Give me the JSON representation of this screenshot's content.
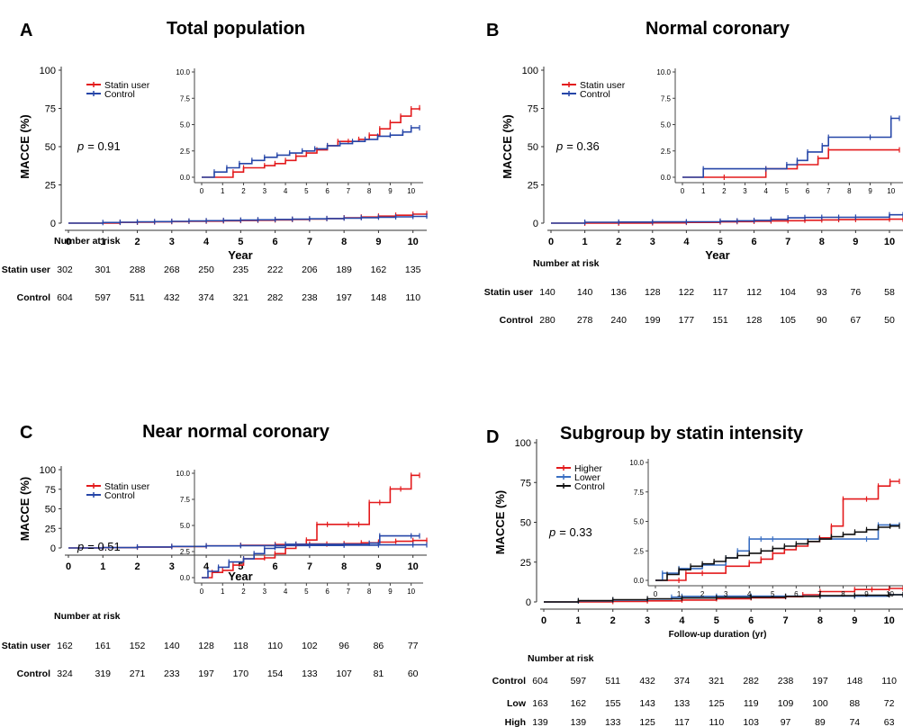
{
  "chart_data": [
    {
      "type": "line",
      "panel_letter": "A",
      "title": "Total population",
      "xlabel": "Year",
      "ylabel": "MACCE (%)",
      "xlim": [
        0,
        10.4
      ],
      "ylim": [
        0,
        100
      ],
      "x_ticks": [
        0,
        1,
        2,
        3,
        4,
        5,
        6,
        7,
        8,
        9,
        10
      ],
      "y_ticks": [
        0,
        25,
        50,
        75,
        100
      ],
      "p_label": "p",
      "p_value": "= 0.91",
      "legend_position": "top-left",
      "series": [
        {
          "name": "Statin user",
          "color": "#e31a1c",
          "x": [
            0,
            1.5,
            2.0,
            2.5,
            3.0,
            3.5,
            4.0,
            4.5,
            5.0,
            5.5,
            6.0,
            6.5,
            7.0,
            7.5,
            8.0,
            8.5,
            9.0,
            9.5,
            10.0,
            10.4
          ],
          "y": [
            0,
            0.5,
            0.6,
            0.8,
            1.0,
            1.2,
            1.3,
            1.5,
            1.7,
            1.9,
            2.1,
            2.4,
            2.7,
            3.0,
            3.5,
            4.0,
            4.6,
            5.2,
            5.9,
            6.3
          ]
        },
        {
          "name": "Control",
          "color": "#2646a8",
          "x": [
            0,
            1.0,
            1.5,
            2.0,
            2.5,
            3.0,
            3.5,
            4.0,
            4.5,
            5.0,
            5.5,
            6.0,
            6.5,
            7.0,
            7.5,
            8.0,
            8.5,
            9.0,
            9.5,
            10.0,
            10.4
          ],
          "y": [
            0,
            0.4,
            0.6,
            0.8,
            1.0,
            1.2,
            1.4,
            1.6,
            1.8,
            2.0,
            2.2,
            2.4,
            2.6,
            2.8,
            3.0,
            3.3,
            3.6,
            3.9,
            4.1,
            4.4,
            4.6
          ]
        }
      ],
      "inset": {
        "ylim": [
          0,
          10
        ],
        "y_ticks": [
          "0.0",
          "2.5",
          "5.0",
          "7.5",
          "10.0"
        ],
        "x_ticks": [
          0,
          1,
          2,
          3,
          4,
          5,
          6,
          7,
          8,
          9,
          10
        ],
        "series": [
          {
            "name": "Statin user",
            "x": [
              0,
              1.5,
              2.0,
              3.0,
              3.5,
              4.0,
              4.5,
              5.0,
              5.5,
              6.0,
              6.5,
              7.0,
              7.5,
              8.0,
              8.5,
              9.0,
              9.5,
              10.0,
              10.4
            ],
            "y": [
              0,
              0.5,
              0.9,
              1.1,
              1.3,
              1.6,
              2.0,
              2.3,
              2.6,
              3.0,
              3.4,
              3.4,
              3.6,
              4.0,
              4.6,
              5.2,
              5.8,
              6.5,
              6.6
            ]
          },
          {
            "name": "Control",
            "x": [
              0,
              0.6,
              1.2,
              1.8,
              2.4,
              3.0,
              3.6,
              4.2,
              4.8,
              5.4,
              6.0,
              6.6,
              7.2,
              7.8,
              8.4,
              9.0,
              9.6,
              10.0,
              10.4
            ],
            "y": [
              0,
              0.5,
              0.9,
              1.3,
              1.6,
              1.9,
              2.1,
              2.3,
              2.5,
              2.7,
              3.0,
              3.2,
              3.4,
              3.6,
              3.9,
              4.0,
              4.3,
              4.7,
              4.7
            ]
          }
        ]
      },
      "risk_table": {
        "header": "Number at risk",
        "rows": [
          {
            "label": "Statin user",
            "values": [
              302,
              301,
              288,
              268,
              250,
              235,
              222,
              206,
              189,
              162,
              135
            ]
          },
          {
            "label": "Control",
            "values": [
              604,
              597,
              511,
              432,
              374,
              321,
              282,
              238,
              197,
              148,
              110
            ]
          }
        ]
      }
    },
    {
      "type": "line",
      "panel_letter": "B",
      "title": "Normal coronary",
      "xlabel": "Year",
      "ylabel": "MACCE (%)",
      "xlim": [
        0,
        10.4
      ],
      "ylim": [
        0,
        100
      ],
      "x_ticks": [
        0,
        1,
        2,
        3,
        4,
        5,
        6,
        7,
        8,
        9,
        10
      ],
      "y_ticks": [
        0,
        25,
        50,
        75,
        100
      ],
      "p_label": "p",
      "p_value": "= 0.36",
      "legend_position": "top-left",
      "series": [
        {
          "name": "Statin user",
          "color": "#e31a1c",
          "x": [
            0,
            1.0,
            2.0,
            3.0,
            4.0,
            5.0,
            5.5,
            6.0,
            6.5,
            7.0,
            7.5,
            8.0,
            8.5,
            9.0,
            10.0,
            10.4
          ],
          "y": [
            0,
            0,
            0,
            0.2,
            0.5,
            0.8,
            1.0,
            1.2,
            1.4,
            1.6,
            1.9,
            2.1,
            2.3,
            2.4,
            2.6,
            2.6
          ]
        },
        {
          "name": "Control",
          "color": "#2646a8",
          "x": [
            0,
            1.0,
            2.0,
            3.0,
            4.0,
            5.0,
            5.5,
            6.0,
            6.5,
            7.0,
            7.5,
            8.0,
            8.5,
            9.0,
            10.0,
            10.4
          ],
          "y": [
            0,
            0.6,
            0.7,
            0.8,
            0.9,
            1.3,
            1.5,
            1.8,
            2.5,
            3.5,
            3.7,
            3.8,
            3.8,
            3.9,
            5.5,
            5.5
          ]
        }
      ],
      "inset": {
        "ylim": [
          0,
          10
        ],
        "y_ticks": [
          "0.0",
          "2.5",
          "5.0",
          "7.5",
          "10.0"
        ],
        "x_ticks": [
          0,
          1,
          2,
          3,
          4,
          5,
          6,
          7,
          8,
          9,
          10
        ],
        "series": [
          {
            "name": "Statin user",
            "x": [
              0,
              2.0,
              4.0,
              5.5,
              6.5,
              7.0,
              10.4
            ],
            "y": [
              0,
              0,
              0.8,
              1.2,
              1.8,
              2.6,
              2.6
            ]
          },
          {
            "name": "Control",
            "x": [
              0,
              1.0,
              4.0,
              5.0,
              5.5,
              6.0,
              6.7,
              7.0,
              9.0,
              10.0,
              10.4
            ],
            "y": [
              0,
              0.8,
              0.8,
              1.2,
              1.6,
              2.4,
              3.0,
              3.8,
              3.8,
              5.6,
              5.6
            ]
          }
        ]
      },
      "risk_table": {
        "header": "Number at risk",
        "rows": [
          {
            "label": "Statin user",
            "values": [
              140,
              140,
              136,
              128,
              122,
              117,
              112,
              104,
              93,
              76,
              58
            ]
          },
          {
            "label": "Control",
            "values": [
              280,
              278,
              240,
              199,
              177,
              151,
              128,
              105,
              90,
              67,
              50
            ]
          }
        ]
      }
    },
    {
      "type": "line",
      "panel_letter": "C",
      "title": "Near normal coronary",
      "xlabel": "Year",
      "ylabel": "MACCE (%)",
      "xlim": [
        0,
        10.4
      ],
      "ylim": [
        0,
        100
      ],
      "x_ticks": [
        0,
        1,
        2,
        3,
        4,
        5,
        6,
        7,
        8,
        9,
        10
      ],
      "y_ticks": [
        0,
        25,
        50,
        75,
        100
      ],
      "p_label": "p",
      "p_value": "= 0.51",
      "legend_position": "top-left",
      "series": [
        {
          "name": "Statin user",
          "color": "#e31a1c",
          "x": [
            0,
            1.0,
            2.0,
            3.0,
            4.0,
            5.0,
            6.0,
            7.0,
            7.5,
            8.0,
            8.5,
            9.0,
            9.5,
            10.0,
            10.4
          ],
          "y": [
            0,
            0.4,
            1.0,
            1.8,
            2.6,
            3.4,
            4.4,
            5.0,
            5.0,
            5.5,
            6.5,
            7.5,
            8.5,
            9.5,
            9.7
          ]
        },
        {
          "name": "Control",
          "color": "#2646a8",
          "x": [
            0,
            1.0,
            2.0,
            3.0,
            4.0,
            5.0,
            6.0,
            7.0,
            8.0,
            9.0,
            10.0,
            10.4
          ],
          "y": [
            0,
            0.5,
            1.3,
            2.0,
            2.7,
            3.0,
            3.1,
            3.2,
            3.6,
            3.9,
            4.0,
            4.0
          ]
        }
      ],
      "inset": {
        "ylim": [
          0,
          10
        ],
        "y_ticks": [
          "0.0",
          "2.5",
          "5.0",
          "7.5",
          "10.0"
        ],
        "x_ticks": [
          0,
          1,
          2,
          3,
          4,
          5,
          6,
          7,
          8,
          9,
          10
        ],
        "series": [
          {
            "name": "Statin user",
            "x": [
              0,
              0.5,
              1.0,
              1.5,
              2.0,
              3.0,
              3.5,
              4.0,
              4.5,
              5.0,
              5.5,
              6.0,
              7.0,
              7.5,
              8.0,
              8.5,
              9.0,
              9.5,
              10.0,
              10.4
            ],
            "y": [
              0,
              0.5,
              0.7,
              1.2,
              1.8,
              1.9,
              2.3,
              2.8,
              3.2,
              3.6,
              5.1,
              5.1,
              5.1,
              5.1,
              7.2,
              7.2,
              8.5,
              8.5,
              9.8,
              9.8
            ]
          },
          {
            "name": "Control",
            "x": [
              0,
              0.3,
              0.8,
              1.3,
              2.0,
              2.5,
              3.0,
              3.5,
              4.0,
              4.5,
              8.0,
              8.5,
              10.0,
              10.4
            ],
            "y": [
              0,
              0.6,
              1.0,
              1.5,
              1.8,
              2.3,
              2.8,
              2.9,
              3.2,
              3.2,
              3.3,
              4.0,
              4.0,
              4.0
            ]
          }
        ]
      },
      "risk_table": {
        "header": "Number at risk",
        "rows": [
          {
            "label": "Statin user",
            "values": [
              162,
              161,
              152,
              140,
              128,
              118,
              110,
              102,
              96,
              86,
              77
            ]
          },
          {
            "label": "Control",
            "values": [
              324,
              319,
              271,
              233,
              197,
              170,
              154,
              133,
              107,
              81,
              60
            ]
          }
        ]
      }
    },
    {
      "type": "line",
      "panel_letter": "D",
      "title": "Subgroup by statin intensity",
      "xlabel": "Follow-up duration (yr)",
      "ylabel": "MACCE (%)",
      "xlim": [
        0,
        10.4
      ],
      "ylim": [
        0,
        100
      ],
      "x_ticks": [
        0,
        1,
        2,
        3,
        4,
        5,
        6,
        7,
        8,
        9,
        10
      ],
      "y_ticks": [
        0,
        25,
        50,
        75,
        100
      ],
      "p_label": "p",
      "p_value": "= 0.33",
      "legend_position": "top-left",
      "series": [
        {
          "name": "Higher",
          "color": "#e31a1c",
          "x": [
            0,
            2.0,
            3.0,
            4.0,
            5.0,
            6.0,
            7.0,
            7.5,
            8.0,
            9.0,
            9.5,
            10.0,
            10.4
          ],
          "y": [
            0,
            0.3,
            0.7,
            1.2,
            2.0,
            2.6,
            3.3,
            4.5,
            6.5,
            7.8,
            7.8,
            8.5,
            8.5
          ]
        },
        {
          "name": "Lower",
          "color": "#3a6fc2",
          "x": [
            0,
            1.0,
            2.0,
            3.0,
            3.7,
            4.0,
            5.0,
            6.0,
            7.0,
            8.0,
            9.0,
            10.0,
            10.4
          ],
          "y": [
            0,
            0.6,
            1.2,
            1.8,
            3.0,
            3.5,
            3.6,
            3.6,
            3.6,
            3.6,
            3.6,
            4.6,
            4.6
          ]
        },
        {
          "name": "Control",
          "color": "#111111",
          "x": [
            0,
            1.0,
            2.0,
            3.0,
            4.0,
            5.0,
            6.0,
            7.0,
            8.0,
            9.0,
            10.0,
            10.4
          ],
          "y": [
            0,
            0.8,
            1.4,
            2.0,
            2.5,
            2.8,
            3.0,
            3.5,
            3.9,
            4.2,
            4.5,
            4.6
          ]
        }
      ],
      "inset": {
        "ylim": [
          0,
          10
        ],
        "y_ticks": [
          "0.0",
          "2.5",
          "5.0",
          "7.5",
          "10.0"
        ],
        "x_ticks": [
          0,
          1,
          2,
          3,
          4,
          5,
          6,
          7,
          8,
          9,
          10
        ],
        "series": [
          {
            "name": "Higher",
            "x": [
              0,
              1.0,
              1.3,
              2.0,
              3.0,
              4.0,
              4.5,
              5.0,
              5.5,
              6.0,
              6.5,
              7.0,
              7.5,
              8.0,
              9.0,
              9.5,
              10.0,
              10.4
            ],
            "y": [
              0,
              0,
              0.6,
              0.6,
              1.2,
              1.5,
              1.8,
              2.3,
              2.6,
              2.9,
              3.3,
              3.6,
              4.6,
              6.9,
              6.9,
              8.0,
              8.4,
              8.4
            ]
          },
          {
            "name": "Lower",
            "x": [
              0,
              0.3,
              1.0,
              2.0,
              3.0,
              3.5,
              4.0,
              4.5,
              5.0,
              9.0,
              9.5,
              10.4
            ],
            "y": [
              0,
              0.6,
              1.0,
              1.3,
              1.9,
              2.5,
              3.5,
              3.5,
              3.5,
              3.5,
              4.7,
              4.7
            ]
          },
          {
            "name": "Control",
            "x": [
              0,
              0.5,
              1.0,
              1.5,
              2.0,
              2.5,
              3.0,
              3.5,
              4.0,
              4.5,
              5.0,
              5.5,
              6.0,
              6.5,
              7.0,
              7.5,
              8.0,
              8.5,
              9.0,
              9.5,
              10.0,
              10.4
            ],
            "y": [
              0,
              0.5,
              0.9,
              1.2,
              1.4,
              1.6,
              1.9,
              2.1,
              2.3,
              2.5,
              2.7,
              2.9,
              3.1,
              3.3,
              3.5,
              3.7,
              3.9,
              4.1,
              4.3,
              4.5,
              4.6,
              4.6
            ]
          }
        ]
      },
      "risk_table": {
        "header": "Number at risk",
        "rows": [
          {
            "label": "Control",
            "values": [
              604,
              597,
              511,
              432,
              374,
              321,
              282,
              238,
              197,
              148,
              110
            ]
          },
          {
            "label": "Low",
            "values": [
              163,
              162,
              155,
              143,
              133,
              125,
              119,
              109,
              100,
              88,
              72
            ]
          },
          {
            "label": "High",
            "values": [
              139,
              139,
              133,
              125,
              117,
              110,
              103,
              97,
              89,
              74,
              63
            ]
          }
        ]
      }
    }
  ]
}
